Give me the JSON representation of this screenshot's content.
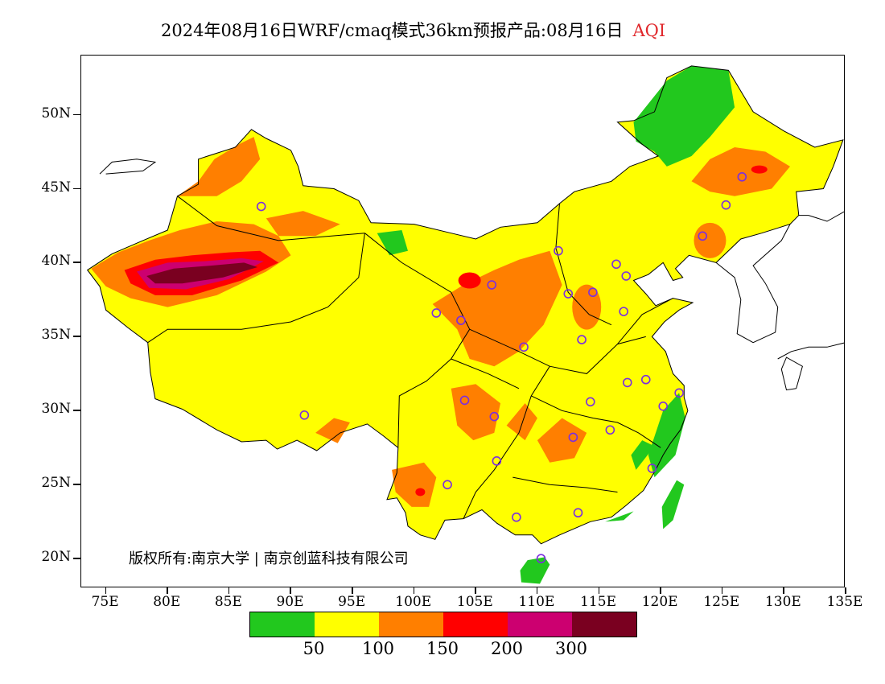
{
  "title": {
    "text": "2024年08月16日WRF/cmaq模式36km预报产品:08月16日",
    "variable": "AQI",
    "variable_color": "#e0282c"
  },
  "axes": {
    "y_ticks": [
      "50N",
      "45N",
      "40N",
      "35N",
      "30N",
      "25N",
      "20N"
    ],
    "x_ticks": [
      "75E",
      "80E",
      "85E",
      "90E",
      "95E",
      "100E",
      "105E",
      "110E",
      "115E",
      "120E",
      "125E",
      "130E",
      "135E"
    ],
    "lon_range": [
      73,
      135
    ],
    "lat_range": [
      18,
      54
    ]
  },
  "legend": {
    "colors": [
      "#22c81e",
      "#ffff00",
      "#ff7f00",
      "#ff0000",
      "#cc0070",
      "#7a0020"
    ],
    "labels": [
      "50",
      "100",
      "150",
      "200",
      "300"
    ]
  },
  "copyright": "版权所有:南京大学 | 南京创蓝科技有限公司",
  "map": {
    "colors": {
      "good": "#22c81e",
      "moderate": "#ffff00",
      "usg": "#ff7f00",
      "unhealthy": "#ff0000",
      "very_unhealthy": "#cc0070",
      "hazardous": "#7a0020",
      "boundary": "#000000",
      "station_marker": "#7b2ee0"
    },
    "stations": [
      {
        "lon": 87.6,
        "lat": 43.8
      },
      {
        "lon": 101.8,
        "lat": 36.6
      },
      {
        "lon": 103.8,
        "lat": 36.1
      },
      {
        "lon": 106.3,
        "lat": 38.5
      },
      {
        "lon": 111.7,
        "lat": 40.8
      },
      {
        "lon": 112.5,
        "lat": 37.9
      },
      {
        "lon": 114.5,
        "lat": 38.0
      },
      {
        "lon": 116.4,
        "lat": 39.9
      },
      {
        "lon": 117.2,
        "lat": 39.1
      },
      {
        "lon": 117.0,
        "lat": 36.7
      },
      {
        "lon": 113.6,
        "lat": 34.8
      },
      {
        "lon": 108.9,
        "lat": 34.3
      },
      {
        "lon": 104.1,
        "lat": 30.7
      },
      {
        "lon": 106.5,
        "lat": 29.6
      },
      {
        "lon": 91.1,
        "lat": 29.7
      },
      {
        "lon": 102.7,
        "lat": 25.0
      },
      {
        "lon": 106.7,
        "lat": 26.6
      },
      {
        "lon": 108.3,
        "lat": 22.8
      },
      {
        "lon": 113.3,
        "lat": 23.1
      },
      {
        "lon": 110.3,
        "lat": 20.0
      },
      {
        "lon": 112.9,
        "lat": 28.2
      },
      {
        "lon": 115.9,
        "lat": 28.7
      },
      {
        "lon": 114.3,
        "lat": 30.6
      },
      {
        "lon": 117.3,
        "lat": 31.9
      },
      {
        "lon": 118.8,
        "lat": 32.1
      },
      {
        "lon": 121.5,
        "lat": 31.2
      },
      {
        "lon": 120.2,
        "lat": 30.3
      },
      {
        "lon": 119.3,
        "lat": 26.1
      },
      {
        "lon": 123.4,
        "lat": 41.8
      },
      {
        "lon": 125.3,
        "lat": 43.9
      },
      {
        "lon": 126.6,
        "lat": 45.8
      }
    ]
  }
}
